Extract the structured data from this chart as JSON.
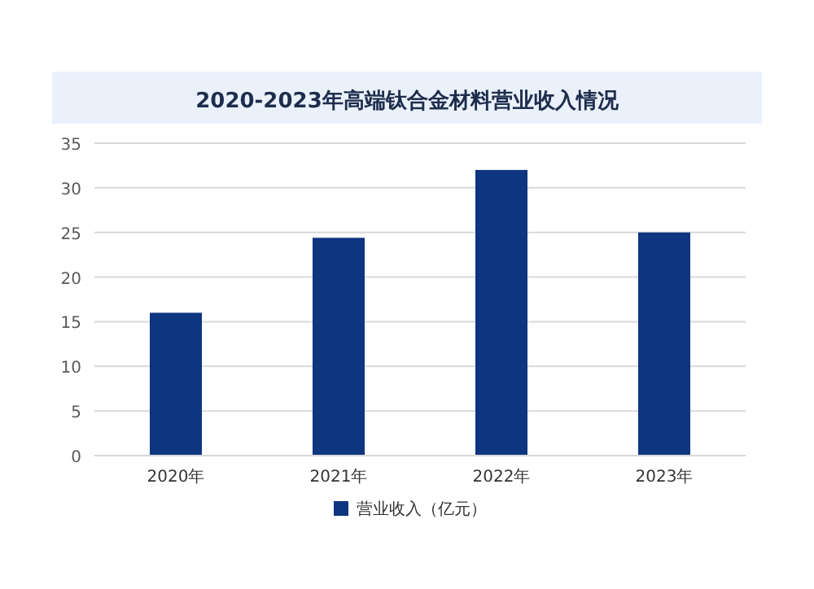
{
  "chart_data": {
    "type": "bar",
    "title": "2020-2023年高端钛合金材料营业收入情况",
    "categories": [
      "2020年",
      "2021年",
      "2022年",
      "2023年"
    ],
    "series": [
      {
        "name": "营业收入（亿元）",
        "color": "#0d3580",
        "values": [
          16,
          24.4,
          32,
          25
        ]
      }
    ],
    "ylim": [
      0,
      35
    ],
    "yticks": [
      0,
      5,
      10,
      15,
      20,
      25,
      30,
      35
    ],
    "grid": "y",
    "legend": "bottom"
  }
}
